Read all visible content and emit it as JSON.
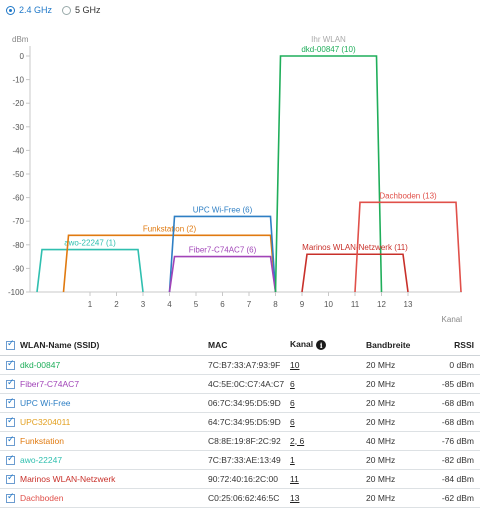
{
  "band_toggle": {
    "options": [
      {
        "label": "2.4 GHz",
        "selected": true
      },
      {
        "label": "5 GHz",
        "selected": false
      }
    ]
  },
  "chart_data": {
    "type": "area",
    "ylabel": "dBm",
    "xlabel": "Kanal",
    "ylim": [
      -100,
      0
    ],
    "yticks": [
      0,
      -10,
      -20,
      -30,
      -40,
      -50,
      -60,
      -70,
      -80,
      -90,
      -100
    ],
    "xticks": [
      1,
      2,
      3,
      4,
      5,
      6,
      7,
      8,
      9,
      10,
      11,
      12,
      13
    ],
    "grid": false,
    "series": [
      {
        "name": "awo-22247 (1)",
        "color": "#2fbfaf",
        "channel_start": -1,
        "channel_end": 3,
        "rssi": -82
      },
      {
        "name": "Funkstation (2)",
        "color": "#e07a10",
        "channel_start": 0,
        "channel_end": 8,
        "rssi": -76
      },
      {
        "name": "UPC Wi-Free (6)",
        "color": "#2e7fc4",
        "channel_start": 4,
        "channel_end": 8,
        "rssi": -68
      },
      {
        "name": "Fiber7-C74AC7 (6)",
        "color": "#a144b8",
        "channel_start": 4,
        "channel_end": 8,
        "rssi": -85
      },
      {
        "name": "Ihr WLAN\ndkd-00847 (10)",
        "color": "#1fae5a",
        "channel_start": 8,
        "channel_end": 12,
        "rssi": 0
      },
      {
        "name": "Marinos WLAN-Netzwerk (11)",
        "color": "#c8302a",
        "channel_start": 9,
        "channel_end": 13,
        "rssi": -84
      },
      {
        "name": "Dachboden (13)",
        "color": "#e0504a",
        "channel_start": 11,
        "channel_end": 15,
        "rssi": -62
      }
    ]
  },
  "table": {
    "headers": {
      "ssid": "WLAN-Name (SSID)",
      "mac": "MAC",
      "channel": "Kanal",
      "bandwidth": "Bandbreite",
      "rssi": "RSSI"
    },
    "rows": [
      {
        "ssid": "dkd-00847",
        "color": "#1fae5a",
        "mac": "7C:B7:33:A7:93:9F",
        "channel": "10",
        "bandwidth": "20 MHz",
        "rssi": "0 dBm"
      },
      {
        "ssid": "Fiber7-C74AC7",
        "color": "#a144b8",
        "mac": "4C:5E:0C:C7:4A:C7",
        "channel": "6",
        "bandwidth": "20 MHz",
        "rssi": "-85 dBm"
      },
      {
        "ssid": "UPC Wi-Free",
        "color": "#2e7fc4",
        "mac": "06:7C:34:95:D5:9D",
        "channel": "6",
        "bandwidth": "20 MHz",
        "rssi": "-68 dBm"
      },
      {
        "ssid": "UPC3204011",
        "color": "#e3a020",
        "mac": "64:7C:34:95:D5:9D",
        "channel": "6",
        "bandwidth": "20 MHz",
        "rssi": "-68 dBm"
      },
      {
        "ssid": "Funkstation",
        "color": "#e07a10",
        "mac": "C8:8E:19:8F:2C:92",
        "channel": "2, 6",
        "bandwidth": "40 MHz",
        "rssi": "-76 dBm"
      },
      {
        "ssid": "awo-22247",
        "color": "#2fbfaf",
        "mac": "7C:B7:33:AE:13:49",
        "channel": "1",
        "bandwidth": "20 MHz",
        "rssi": "-82 dBm"
      },
      {
        "ssid": "Marinos WLAN-Netzwerk",
        "color": "#c8302a",
        "mac": "90:72:40:16:2C:00",
        "channel": "11",
        "bandwidth": "20 MHz",
        "rssi": "-84 dBm"
      },
      {
        "ssid": "Dachboden",
        "color": "#e0504a",
        "mac": "C0:25:06:62:46:5C",
        "channel": "13",
        "bandwidth": "20 MHz",
        "rssi": "-62 dBm"
      }
    ]
  }
}
